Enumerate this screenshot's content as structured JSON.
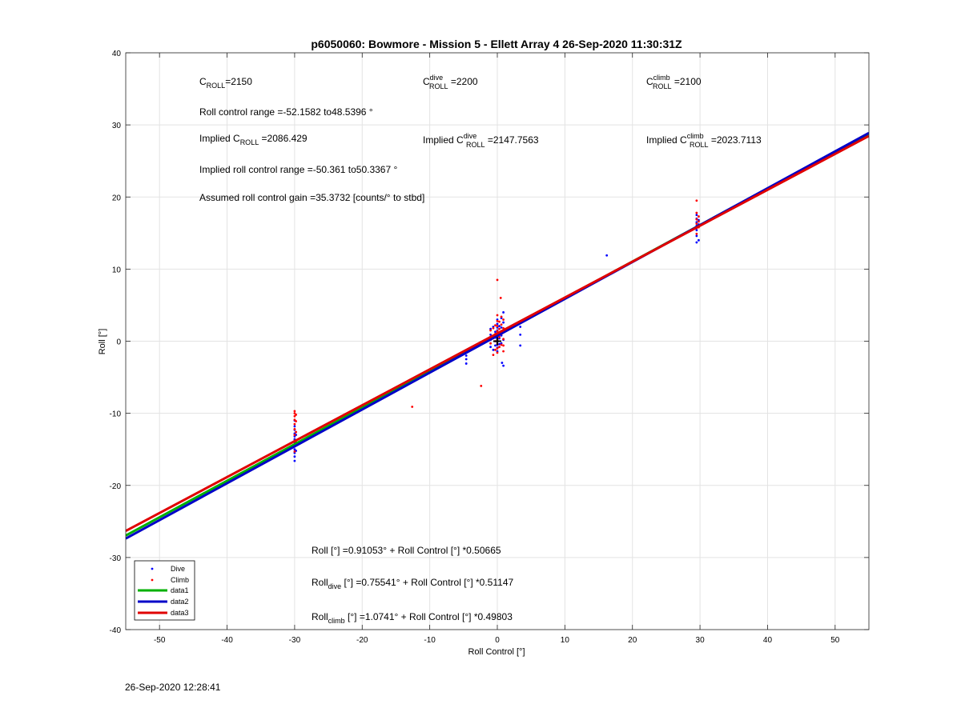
{
  "chart_data": {
    "type": "scatter",
    "title": "p6050060: Bowmore - Mission 5 - Ellett Array 4 26-Sep-2020 11:30:31Z",
    "xlabel": "Roll Control [°]",
    "ylabel": "Roll [°]",
    "xlim": [
      -55,
      55
    ],
    "ylim": [
      -40,
      40
    ],
    "xticks": [
      -50,
      -40,
      -30,
      -20,
      -10,
      0,
      10,
      20,
      30,
      40,
      50
    ],
    "yticks": [
      -40,
      -30,
      -20,
      -10,
      0,
      10,
      20,
      30,
      40
    ],
    "grid": true,
    "legend_position": "bottom-left",
    "series": [
      {
        "name": "Dive",
        "kind": "scatter",
        "color": "#0000ff",
        "points": [
          [
            -30,
            -16.6
          ],
          [
            -30,
            -16.0
          ],
          [
            -30,
            -15.5
          ],
          [
            -30,
            -15.0
          ],
          [
            -30,
            -14.5
          ],
          [
            -30,
            -14.0
          ],
          [
            -30,
            -13.6
          ],
          [
            -30,
            -13.2
          ],
          [
            -30,
            -12.8
          ],
          [
            -30,
            -12.3
          ],
          [
            -30,
            -11.8
          ],
          [
            -30,
            -11.0
          ],
          [
            -29.8,
            -15.2
          ],
          [
            -29.8,
            -14.2
          ],
          [
            -29.8,
            -13.0
          ],
          [
            -4.6,
            -3.1
          ],
          [
            -4.6,
            -2.5
          ],
          [
            -4.6,
            -2.0
          ],
          [
            -4.6,
            -1.6
          ],
          [
            0,
            -1.4
          ],
          [
            0,
            -0.9
          ],
          [
            0,
            -0.5
          ],
          [
            0,
            -0.1
          ],
          [
            0,
            0.3
          ],
          [
            0,
            0.7
          ],
          [
            0,
            1.1
          ],
          [
            0,
            1.5
          ],
          [
            0,
            1.9
          ],
          [
            0,
            2.4
          ],
          [
            0,
            3.0
          ],
          [
            -0.3,
            -0.6
          ],
          [
            -0.3,
            0.5
          ],
          [
            -0.3,
            1.3
          ],
          [
            0.3,
            -0.4
          ],
          [
            0.3,
            0.4
          ],
          [
            0.3,
            1.2
          ],
          [
            0.3,
            2.1
          ],
          [
            0.6,
            -0.3
          ],
          [
            0.6,
            0.8
          ],
          [
            0.6,
            1.9
          ],
          [
            0.6,
            3.2
          ],
          [
            0.9,
            0.2
          ],
          [
            0.9,
            1.4
          ],
          [
            0.9,
            2.6
          ],
          [
            0.9,
            4.0
          ],
          [
            -1.0,
            -0.8
          ],
          [
            -1.0,
            0.2
          ],
          [
            -1.0,
            0.9
          ],
          [
            -1.0,
            1.7
          ],
          [
            -0.6,
            -1.2
          ],
          [
            -0.6,
            2.0
          ],
          [
            0.7,
            -3.0
          ],
          [
            0.9,
            -3.4
          ],
          [
            3.4,
            -0.6
          ],
          [
            3.4,
            0.9
          ],
          [
            3.4,
            2.0
          ],
          [
            16.2,
            11.9
          ],
          [
            29.5,
            13.7
          ],
          [
            29.5,
            14.6
          ],
          [
            29.5,
            15.4
          ],
          [
            29.5,
            16.0
          ],
          [
            29.5,
            16.5
          ],
          [
            29.5,
            17.0
          ],
          [
            29.5,
            17.5
          ],
          [
            29.8,
            14.0
          ],
          [
            29.8,
            16.2
          ],
          [
            29.8,
            16.8
          ]
        ]
      },
      {
        "name": "Climb",
        "kind": "scatter",
        "color": "#ff0000",
        "points": [
          [
            -30,
            -9.7
          ],
          [
            -30,
            -10.0
          ],
          [
            -30,
            -10.4
          ],
          [
            -30,
            -10.9
          ],
          [
            -30,
            -11.5
          ],
          [
            -30,
            -12.2
          ],
          [
            -30,
            -13.0
          ],
          [
            -30,
            -13.8
          ],
          [
            -30,
            -14.6
          ],
          [
            -30,
            -15.3
          ],
          [
            -29.8,
            -10.2
          ],
          [
            -29.8,
            -11.1
          ],
          [
            -29.8,
            -12.6
          ],
          [
            -29.8,
            -14.0
          ],
          [
            -12.6,
            -9.1
          ],
          [
            -2.4,
            -6.2
          ],
          [
            0,
            -1.6
          ],
          [
            0,
            -1.0
          ],
          [
            0,
            -0.4
          ],
          [
            0,
            0.2
          ],
          [
            0,
            0.8
          ],
          [
            0,
            1.4
          ],
          [
            0,
            2.1
          ],
          [
            0,
            2.8
          ],
          [
            0,
            3.6
          ],
          [
            0,
            8.5
          ],
          [
            -0.3,
            -1.2
          ],
          [
            -0.3,
            0.0
          ],
          [
            -0.3,
            1.0
          ],
          [
            -0.3,
            2.2
          ],
          [
            0.3,
            -0.8
          ],
          [
            0.3,
            0.6
          ],
          [
            0.3,
            1.7
          ],
          [
            0.3,
            2.7
          ],
          [
            0.6,
            -0.5
          ],
          [
            0.6,
            1.0
          ],
          [
            0.6,
            2.3
          ],
          [
            0.6,
            3.4
          ],
          [
            0.9,
            0.3
          ],
          [
            0.9,
            1.8
          ],
          [
            0.9,
            3.0
          ],
          [
            0.5,
            6.0
          ],
          [
            -1.0,
            -0.3
          ],
          [
            -1.0,
            0.6
          ],
          [
            -1.0,
            1.5
          ],
          [
            -0.6,
            -1.9
          ],
          [
            -0.6,
            0.4
          ],
          [
            -0.6,
            1.8
          ],
          [
            0.9,
            -1.4
          ],
          [
            0.9,
            -0.6
          ],
          [
            29.5,
            14.9
          ],
          [
            29.5,
            15.7
          ],
          [
            29.5,
            16.3
          ],
          [
            29.5,
            16.9
          ],
          [
            29.5,
            17.8
          ],
          [
            29.5,
            19.5
          ],
          [
            29.8,
            15.8
          ],
          [
            29.8,
            16.6
          ],
          [
            29.8,
            17.3
          ]
        ]
      },
      {
        "name": "data1",
        "kind": "line",
        "color": "#00b000",
        "intercept": 0.91053,
        "slope": 0.50665
      },
      {
        "name": "data2",
        "kind": "line",
        "color": "#0000c8",
        "intercept": 0.75541,
        "slope": 0.51147
      },
      {
        "name": "data3",
        "kind": "line",
        "color": "#e00000",
        "intercept": 1.0741,
        "slope": 0.49803
      }
    ],
    "marker": {
      "kind": "cross",
      "x": 0,
      "y": 0,
      "color": "#000000"
    },
    "annotations": {
      "c_roll": {
        "base": "C",
        "sub": "ROLL",
        "value": "=2150"
      },
      "c_dive": {
        "base": "C",
        "sup": "dive",
        "sub": "ROLL",
        "value": " =2200"
      },
      "c_climb": {
        "base": "C",
        "sup": "climb",
        "sub": "ROLL",
        "value": " =2100"
      },
      "range": "Roll control range =-52.1582 to48.5396 °",
      "implied_c": {
        "prefix": "Implied C",
        "sub": "ROLL",
        "value": " =2086.429"
      },
      "implied_c_dive": {
        "prefix": "Implied C",
        "sup": "dive",
        "sub": "ROLL",
        "value": " =2147.7563"
      },
      "implied_c_climb": {
        "prefix": "Implied C",
        "sup": "climb",
        "sub": "ROLL",
        "value": " =2023.7113"
      },
      "implied_range": "Implied roll control range =-50.361 to50.3367 °",
      "gain": "Assumed roll control gain =35.3732 [counts/° to stbd]",
      "fit_all": "Roll [°] =0.91053° + Roll Control [°] *0.50665",
      "fit_dive": {
        "prefix": "Roll",
        "sub": "dive",
        "value": " [°] =0.75541° + Roll Control [°] *0.51147"
      },
      "fit_climb": {
        "prefix": "Roll",
        "sub": "climb",
        "value": " [°] =1.0741° + Roll Control [°] *0.49803"
      }
    }
  },
  "footer": {
    "timestamp": "26-Sep-2020 12:28:41"
  }
}
